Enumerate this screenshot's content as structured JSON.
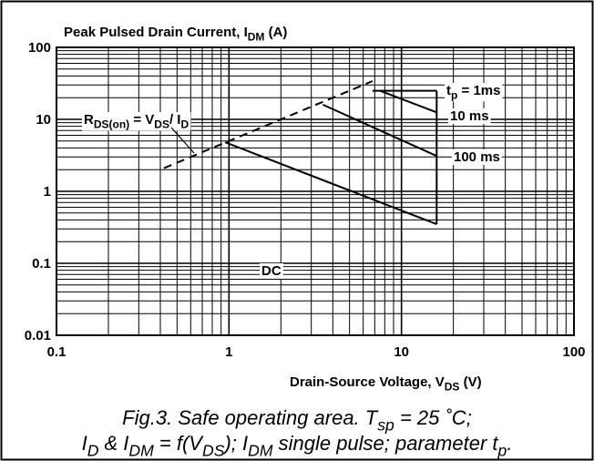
{
  "chart_data": {
    "type": "line",
    "title": [
      "Peak Pulsed Drain Current, I",
      "DM",
      " (A)"
    ],
    "xlabel": [
      "Drain-Source Voltage, V",
      "DS",
      " (V)"
    ],
    "caption": [
      [
        "Fig.3.   Safe operating area. T",
        "sp",
        " = 25 ˚C;"
      ],
      [
        "I",
        "D",
        " & I",
        "DM",
        " = f(V",
        "DS",
        "); I",
        "DM",
        " single pulse; parameter t",
        "p",
        "."
      ]
    ],
    "log_x": true,
    "log_y": true,
    "grid": true,
    "xlim": [
      0.1,
      100
    ],
    "ylim": [
      0.01,
      100
    ],
    "xticks": [
      0.1,
      1,
      10,
      100
    ],
    "yticks": [
      0.01,
      0.1,
      1,
      10,
      100
    ],
    "xminor": [
      0.2,
      0.3,
      0.4,
      0.5,
      0.6,
      0.7,
      0.8,
      0.9,
      2,
      3,
      4,
      5,
      6,
      7,
      8,
      9,
      20,
      30,
      40,
      50,
      60,
      70,
      80,
      90
    ],
    "yminor": [
      0.02,
      0.03,
      0.04,
      0.05,
      0.06,
      0.07,
      0.08,
      0.09,
      0.2,
      0.3,
      0.4,
      0.5,
      0.6,
      0.7,
      0.8,
      0.9,
      2,
      3,
      4,
      5,
      6,
      7,
      8,
      9,
      20,
      30,
      40,
      50,
      60,
      70,
      80,
      90
    ],
    "series": [
      {
        "style": "dashed",
        "x": [
          0.42,
          6.8
        ],
        "values": [
          2.1,
          34
        ]
      },
      {
        "style": "solid",
        "x": [
          6.8,
          16
        ],
        "values": [
          25,
          25
        ]
      },
      {
        "style": "solid",
        "x": [
          7.5,
          16
        ],
        "values": [
          25,
          12.5
        ]
      },
      {
        "style": "solid",
        "x": [
          3.5,
          16
        ],
        "values": [
          16,
          3.1
        ]
      },
      {
        "style": "solid",
        "x": [
          0.95,
          16
        ],
        "values": [
          4.8,
          0.35
        ]
      },
      {
        "style": "solid",
        "x": [
          16,
          16
        ],
        "values": [
          25,
          0.35
        ]
      }
    ],
    "annotations": [
      {
        "text": [
          "t",
          "p",
          " = 1ms"
        ]
      },
      {
        "text": [
          "10 ms"
        ]
      },
      {
        "text": [
          "100 ms"
        ]
      },
      {
        "text": [
          "DC"
        ]
      },
      {
        "text": [
          "R",
          "DS(on)",
          " = V",
          "DS",
          "/ I",
          "D"
        ]
      }
    ]
  }
}
